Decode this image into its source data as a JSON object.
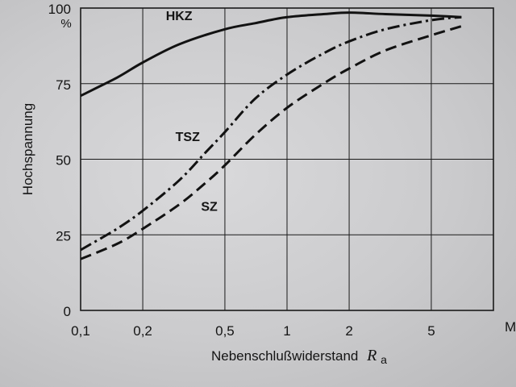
{
  "chart_data": {
    "type": "line",
    "xlabel": "Nebenschlußwiderstand",
    "xlabel_symbol": "R",
    "xlabel_subscript": "a",
    "ylabel": "Hochspannung",
    "x_scale": "log",
    "xlim": [
      0.1,
      10
    ],
    "ylim": [
      0,
      100
    ],
    "grid": true,
    "x_ticks": [
      {
        "value": 0.1,
        "label": "0,1"
      },
      {
        "value": 0.2,
        "label": "0,2"
      },
      {
        "value": 0.5,
        "label": "0,5"
      },
      {
        "value": 1,
        "label": "1"
      },
      {
        "value": 2,
        "label": "2"
      },
      {
        "value": 5,
        "label": "5"
      }
    ],
    "x_unit_label": "M",
    "y_ticks": [
      {
        "value": 0,
        "label": "0"
      },
      {
        "value": 25,
        "label": "25"
      },
      {
        "value": 50,
        "label": "50"
      },
      {
        "value": 75,
        "label": "75"
      },
      {
        "value": 100,
        "label": "100"
      }
    ],
    "y_unit_label": "%",
    "series": [
      {
        "name": "HKZ",
        "line_style": "solid",
        "x": [
          0.1,
          0.15,
          0.2,
          0.3,
          0.5,
          0.7,
          1,
          1.5,
          2,
          3,
          5,
          7
        ],
        "y": [
          71,
          77,
          82,
          88,
          93,
          95,
          97,
          98,
          98.5,
          98,
          97.5,
          97
        ]
      },
      {
        "name": "TSZ",
        "line_style": "dash-dot",
        "x": [
          0.1,
          0.15,
          0.2,
          0.3,
          0.4,
          0.5,
          0.7,
          1,
          1.5,
          2,
          3,
          5,
          7
        ],
        "y": [
          20,
          27,
          33,
          43,
          52,
          59,
          70,
          78,
          85,
          89,
          93,
          96,
          97
        ]
      },
      {
        "name": "SZ",
        "line_style": "dashed",
        "x": [
          0.1,
          0.15,
          0.2,
          0.3,
          0.4,
          0.5,
          0.7,
          1,
          1.5,
          2,
          3,
          5,
          7
        ],
        "y": [
          17,
          22,
          27,
          35,
          42,
          48,
          58,
          67,
          75,
          80,
          86,
          91,
          94
        ]
      }
    ],
    "annotations": [
      {
        "text": "HKZ",
        "x": 0.3,
        "y": 96
      },
      {
        "text": "TSZ",
        "x": 0.33,
        "y": 56
      },
      {
        "text": "SZ",
        "x": 0.42,
        "y": 33
      }
    ]
  }
}
